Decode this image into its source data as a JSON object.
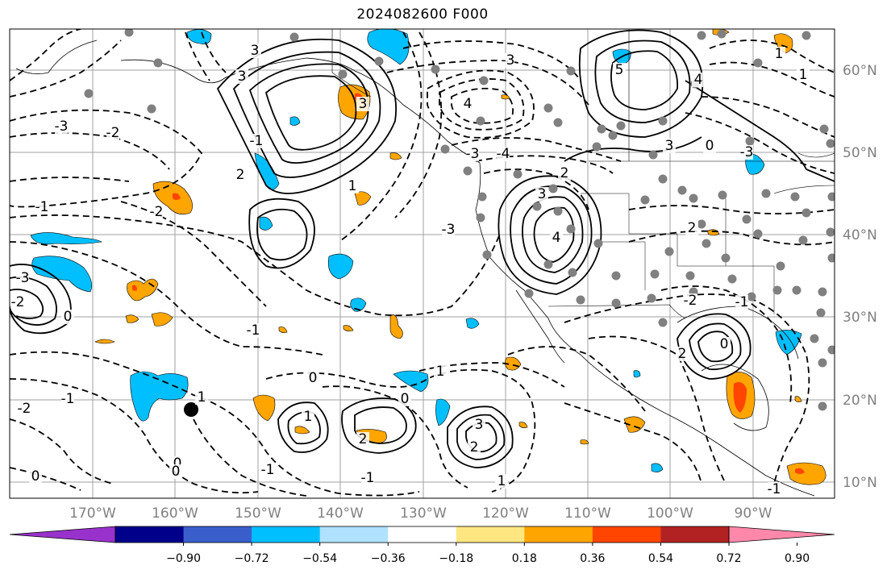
{
  "title": "2024082600 F000",
  "longitude_ticks": [
    "170°W",
    "160°W",
    "150°W",
    "140°W",
    "130°W",
    "120°W",
    "110°W",
    "100°W",
    "90°W"
  ],
  "latitude_ticks": [
    "60°N",
    "50°N",
    "40°N",
    "30°N",
    "20°N",
    "10°N"
  ],
  "colorbar": {
    "ticks": [
      "−0.90",
      "−0.72",
      "−0.54",
      "−0.36",
      "−0.18",
      "0.18",
      "0.36",
      "0.54",
      "0.72",
      "0.90"
    ],
    "colors": [
      "#9932cc",
      "#00008b",
      "#3a5fcd",
      "#00bfff",
      "#b0e2ff",
      "#ffffff",
      "#ffe680",
      "#ffa500",
      "#ff4500",
      "#b22222",
      "#ff88aa"
    ]
  },
  "contour_labels": [
    "3",
    "3",
    "-3",
    "4",
    "5",
    "4",
    "-3",
    "-4",
    "-3",
    "-1",
    "-2",
    "3",
    "2",
    "-3",
    "-2",
    "-1",
    "1",
    "2",
    "3",
    "4",
    "-1",
    "-2",
    "0",
    "-3",
    "1",
    "2",
    "3",
    "0",
    "-1",
    "0",
    "1",
    "2",
    "1",
    "0",
    "-1",
    "1",
    "2",
    "0",
    "-2",
    "-1",
    "0",
    "0",
    "-1",
    "-2",
    "-1",
    "0",
    "1",
    "1",
    "2",
    "3",
    "-3"
  ],
  "colors": {
    "grid": "#a0a0a0",
    "coast": "#000000",
    "station_dot": "#808080",
    "marker": "#000000",
    "warm": "#ffa500",
    "warm_core": "#ff4500",
    "cool": "#00bfff"
  }
}
